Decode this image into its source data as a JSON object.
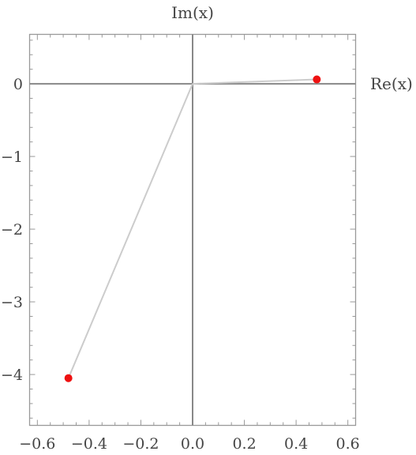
{
  "chart_data": {
    "type": "scatter",
    "title": "",
    "xlabel": "Re(x)",
    "ylabel": "Im(x)",
    "xlim": [
      -0.63,
      0.63
    ],
    "ylim": [
      -4.7,
      0.68
    ],
    "x_ticks": [
      -0.6,
      -0.4,
      -0.2,
      0.0,
      0.2,
      0.4,
      0.6
    ],
    "x_tick_labels": [
      "−0.6",
      "−0.4",
      "−0.2",
      "0.0",
      "0.2",
      "0.4",
      "0.6"
    ],
    "y_ticks": [
      0,
      -1,
      -2,
      -3,
      -4
    ],
    "y_tick_labels": [
      "0",
      "−1",
      "−2",
      "−3",
      "−4"
    ],
    "grid": false,
    "points": [
      {
        "x": 0.48,
        "y": 0.06
      },
      {
        "x": -0.48,
        "y": -4.05
      }
    ],
    "lines_from_origin": true,
    "colors": {
      "point": "#ee1111",
      "connector": "#cccccc",
      "axis": "#888888",
      "frame": "#999999",
      "text": "#444444"
    }
  }
}
